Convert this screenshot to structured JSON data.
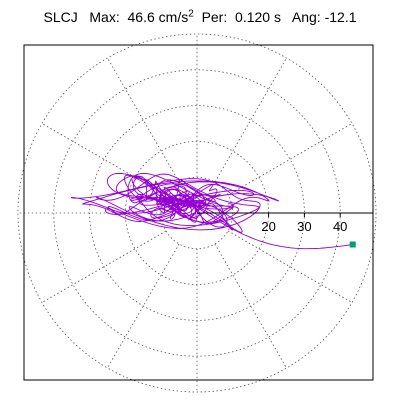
{
  "title": {
    "station": "SLCJ",
    "max_label": "Max:",
    "max_value": "46.6",
    "max_unit_base": "cm/s",
    "max_unit_exp": "2",
    "per_label": "Per:",
    "per_value": "0.120 s",
    "ang_label": "Ang:",
    "ang_value": "-12.1"
  },
  "chart_data": {
    "type": "line",
    "description_type": "polar particle-motion plot",
    "rings": [
      10,
      20,
      30,
      40,
      50
    ],
    "radial_ticks": [
      "20",
      "30",
      "40"
    ],
    "radial_tick_values": [
      20,
      30,
      40
    ],
    "max_amplitude": 46.6,
    "angle_deg": -12.1,
    "period_s": 0.12,
    "grid": true,
    "trace_color": "#9400d3",
    "end_marker_color": "#009e73",
    "end_point": [
      43.5,
      -8.8
    ]
  }
}
